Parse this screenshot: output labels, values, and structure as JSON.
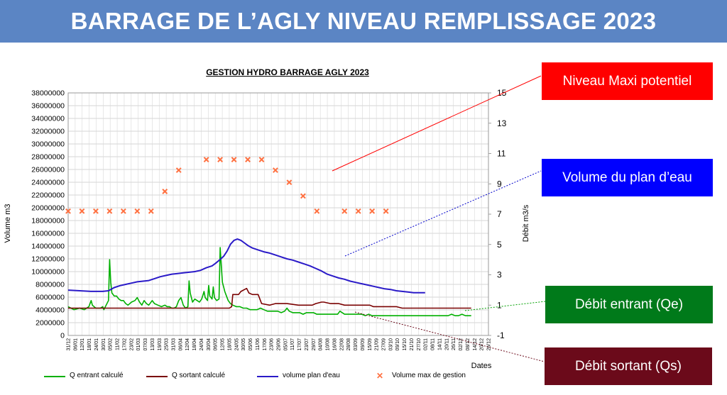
{
  "header": {
    "title": "BARRAGE DE L’AGLY NIVEAU REMPLISSAGE 2023"
  },
  "callouts": {
    "niveau_maxi": "Niveau Maxi potentiel",
    "volume": "Volume du plan d’eau",
    "debit_entrant": "Débit entrant (Qe)",
    "debit_sortant": "Débit sortant (Qs)"
  },
  "colors": {
    "banner": "#5b85c4",
    "qe": "#00b000",
    "qs": "#7a0000",
    "volume": "#2a1ac8",
    "max": "#ff7040",
    "callout_maxi": "#ff0000",
    "callout_volume": "#0000ff",
    "callout_qe": "#007a1a",
    "callout_qs": "#6b0a1a"
  },
  "chart_data": {
    "type": "line",
    "title": "GESTION HYDRO BARRAGE AGLY 2023",
    "ylabel": "Volume m3",
    "y2label": "Débit m3/s",
    "xlabel": "Dates",
    "ylim": [
      0,
      38000000
    ],
    "y2lim": [
      -1,
      15
    ],
    "yticks": [
      0,
      2000000,
      4000000,
      6000000,
      8000000,
      10000000,
      12000000,
      14000000,
      16000000,
      18000000,
      20000000,
      22000000,
      24000000,
      26000000,
      28000000,
      30000000,
      32000000,
      34000000,
      36000000,
      38000000
    ],
    "y2ticks": [
      -1,
      1,
      3,
      5,
      7,
      9,
      11,
      13,
      15
    ],
    "xticks": [
      "31/12",
      "06/01",
      "12/01",
      "18/01",
      "24/01",
      "30/01",
      "05/02",
      "11/02",
      "17/02",
      "23/02",
      "01/03",
      "07/03",
      "13/03",
      "19/03",
      "25/03",
      "31/03",
      "06/04",
      "12/04",
      "18/04",
      "24/04",
      "30/04",
      "06/05",
      "12/05",
      "18/05",
      "24/05",
      "30/05",
      "05/06",
      "11/06",
      "17/06",
      "23/06",
      "29/06",
      "05/07",
      "11/07",
      "17/07",
      "23/07",
      "29/07",
      "04/08",
      "10/08",
      "16/08",
      "22/08",
      "28/08",
      "03/09",
      "09/09",
      "15/09",
      "21/09",
      "27/09",
      "03/10",
      "09/10",
      "15/10",
      "21/10",
      "27/10",
      "02/11",
      "08/11",
      "14/11",
      "20/11",
      "26/11",
      "02/12",
      "08/12",
      "14/12",
      "20/12",
      "26/12"
    ],
    "grid": true,
    "legend": "bottom",
    "series": [
      {
        "name": "Q entrant calculé",
        "axis": "y2",
        "points": [
          [
            0,
            0.9
          ],
          [
            5,
            0.7
          ],
          [
            10,
            0.8
          ],
          [
            14,
            0.7
          ],
          [
            18,
            0.9
          ],
          [
            20,
            1.3
          ],
          [
            21,
            1.0
          ],
          [
            24,
            0.8
          ],
          [
            28,
            0.8
          ],
          [
            30,
            0.9
          ],
          [
            31,
            0.7
          ],
          [
            33,
            1.0
          ],
          [
            35,
            1.3
          ],
          [
            36,
            4.0
          ],
          [
            37,
            2.5
          ],
          [
            38,
            1.8
          ],
          [
            40,
            1.6
          ],
          [
            42,
            1.6
          ],
          [
            44,
            1.4
          ],
          [
            46,
            1.3
          ],
          [
            48,
            1.3
          ],
          [
            50,
            1.1
          ],
          [
            52,
            1.0
          ],
          [
            55,
            1.2
          ],
          [
            58,
            1.3
          ],
          [
            60,
            1.5
          ],
          [
            62,
            1.2
          ],
          [
            64,
            1.0
          ],
          [
            66,
            1.3
          ],
          [
            68,
            1.1
          ],
          [
            70,
            1.0
          ],
          [
            73,
            1.3
          ],
          [
            75,
            1.1
          ],
          [
            78,
            1.0
          ],
          [
            81,
            0.9
          ],
          [
            84,
            1.0
          ],
          [
            86,
            0.9
          ],
          [
            88,
            0.9
          ],
          [
            90,
            0.8
          ],
          [
            92,
            0.8
          ],
          [
            94,
            0.9
          ],
          [
            96,
            1.3
          ],
          [
            98,
            1.5
          ],
          [
            100,
            1.0
          ],
          [
            102,
            0.8
          ],
          [
            104,
            0.9
          ],
          [
            105,
            2.6
          ],
          [
            106,
            1.8
          ],
          [
            108,
            1.2
          ],
          [
            110,
            1.4
          ],
          [
            112,
            1.3
          ],
          [
            114,
            1.2
          ],
          [
            116,
            1.4
          ],
          [
            118,
            1.9
          ],
          [
            119,
            1.5
          ],
          [
            121,
            1.3
          ],
          [
            122,
            2.3
          ],
          [
            123,
            1.6
          ],
          [
            125,
            1.4
          ],
          [
            126,
            2.2
          ],
          [
            127,
            1.5
          ],
          [
            129,
            1.3
          ],
          [
            131,
            1.4
          ],
          [
            132,
            4.8
          ],
          [
            133,
            3.6
          ],
          [
            134,
            2.5
          ],
          [
            135,
            2.2
          ],
          [
            136,
            1.9
          ],
          [
            137,
            1.7
          ],
          [
            139,
            1.3
          ],
          [
            141,
            1.1
          ],
          [
            143,
            1.0
          ],
          [
            146,
            0.9
          ],
          [
            149,
            0.9
          ],
          [
            152,
            0.8
          ],
          [
            155,
            0.8
          ],
          [
            158,
            0.7
          ],
          [
            161,
            0.7
          ],
          [
            164,
            0.7
          ],
          [
            167,
            0.8
          ],
          [
            170,
            0.7
          ],
          [
            173,
            0.6
          ],
          [
            176,
            0.6
          ],
          [
            179,
            0.6
          ],
          [
            182,
            0.6
          ],
          [
            185,
            0.5
          ],
          [
            188,
            0.6
          ],
          [
            190,
            0.8
          ],
          [
            192,
            0.6
          ],
          [
            195,
            0.5
          ],
          [
            198,
            0.5
          ],
          [
            201,
            0.5
          ],
          [
            204,
            0.4
          ],
          [
            207,
            0.5
          ],
          [
            210,
            0.5
          ],
          [
            213,
            0.5
          ],
          [
            216,
            0.4
          ],
          [
            219,
            0.4
          ],
          [
            222,
            0.4
          ],
          [
            225,
            0.4
          ],
          [
            228,
            0.4
          ],
          [
            231,
            0.4
          ],
          [
            234,
            0.4
          ],
          [
            236,
            0.6
          ],
          [
            238,
            0.5
          ],
          [
            240,
            0.4
          ],
          [
            243,
            0.4
          ],
          [
            246,
            0.4
          ],
          [
            249,
            0.4
          ],
          [
            252,
            0.4
          ],
          [
            255,
            0.4
          ],
          [
            258,
            0.3
          ],
          [
            261,
            0.4
          ],
          [
            264,
            0.3
          ],
          [
            267,
            0.3
          ],
          [
            270,
            0.3
          ],
          [
            273,
            0.3
          ],
          [
            276,
            0.3
          ],
          [
            279,
            0.3
          ],
          [
            282,
            0.3
          ],
          [
            285,
            0.3
          ],
          [
            288,
            0.3
          ],
          [
            291,
            0.3
          ],
          [
            294,
            0.3
          ],
          [
            297,
            0.3
          ],
          [
            300,
            0.3
          ],
          [
            303,
            0.3
          ],
          [
            306,
            0.3
          ],
          [
            309,
            0.3
          ],
          [
            312,
            0.3
          ],
          [
            315,
            0.3
          ],
          [
            318,
            0.3
          ],
          [
            321,
            0.3
          ],
          [
            324,
            0.3
          ],
          [
            327,
            0.3
          ],
          [
            330,
            0.3
          ],
          [
            333,
            0.4
          ],
          [
            336,
            0.3
          ],
          [
            339,
            0.3
          ],
          [
            342,
            0.4
          ],
          [
            345,
            0.3
          ],
          [
            348,
            0.3
          ],
          [
            350,
            0.3
          ]
        ]
      },
      {
        "name": "Q sortant calculé",
        "axis": "y2",
        "points": [
          [
            0,
            0.8
          ],
          [
            20,
            0.8
          ],
          [
            40,
            0.8
          ],
          [
            60,
            0.8
          ],
          [
            80,
            0.8
          ],
          [
            100,
            0.8
          ],
          [
            120,
            0.8
          ],
          [
            140,
            0.8
          ],
          [
            142,
            0.9
          ],
          [
            143,
            1.7
          ],
          [
            148,
            1.7
          ],
          [
            150,
            1.9
          ],
          [
            155,
            2.1
          ],
          [
            157,
            1.8
          ],
          [
            160,
            1.7
          ],
          [
            165,
            1.7
          ],
          [
            168,
            1.1
          ],
          [
            175,
            1.0
          ],
          [
            180,
            1.1
          ],
          [
            190,
            1.1
          ],
          [
            200,
            1.0
          ],
          [
            205,
            1.0
          ],
          [
            208,
            1.0
          ],
          [
            210,
            1.0
          ],
          [
            212,
            1.0
          ],
          [
            215,
            1.1
          ],
          [
            220,
            1.2
          ],
          [
            222,
            1.2
          ],
          [
            228,
            1.1
          ],
          [
            232,
            1.1
          ],
          [
            235,
            1.1
          ],
          [
            240,
            1.0
          ],
          [
            245,
            1.0
          ],
          [
            250,
            1.0
          ],
          [
            255,
            1.0
          ],
          [
            260,
            1.0
          ],
          [
            262,
            1.0
          ],
          [
            265,
            0.9
          ],
          [
            270,
            0.9
          ],
          [
            275,
            0.9
          ],
          [
            280,
            0.9
          ],
          [
            285,
            0.9
          ],
          [
            290,
            0.8
          ],
          [
            295,
            0.8
          ],
          [
            300,
            0.8
          ],
          [
            305,
            0.8
          ],
          [
            310,
            0.8
          ],
          [
            315,
            0.8
          ],
          [
            320,
            0.8
          ],
          [
            325,
            0.8
          ],
          [
            330,
            0.8
          ],
          [
            335,
            0.8
          ],
          [
            340,
            0.8
          ],
          [
            345,
            0.8
          ],
          [
            350,
            0.8
          ]
        ]
      },
      {
        "name": "volume plan d'eau",
        "axis": "y",
        "points": [
          [
            0,
            7100000
          ],
          [
            10,
            7000000
          ],
          [
            20,
            6900000
          ],
          [
            30,
            6900000
          ],
          [
            35,
            7000000
          ],
          [
            40,
            7500000
          ],
          [
            45,
            7800000
          ],
          [
            50,
            8000000
          ],
          [
            55,
            8200000
          ],
          [
            60,
            8400000
          ],
          [
            65,
            8500000
          ],
          [
            70,
            8600000
          ],
          [
            75,
            8900000
          ],
          [
            80,
            9200000
          ],
          [
            85,
            9400000
          ],
          [
            90,
            9600000
          ],
          [
            95,
            9700000
          ],
          [
            100,
            9800000
          ],
          [
            105,
            9900000
          ],
          [
            110,
            10000000
          ],
          [
            115,
            10200000
          ],
          [
            120,
            10600000
          ],
          [
            125,
            10900000
          ],
          [
            128,
            11300000
          ],
          [
            132,
            11900000
          ],
          [
            135,
            12400000
          ],
          [
            138,
            13200000
          ],
          [
            141,
            14300000
          ],
          [
            144,
            14900000
          ],
          [
            147,
            15100000
          ],
          [
            150,
            14900000
          ],
          [
            153,
            14500000
          ],
          [
            156,
            14100000
          ],
          [
            160,
            13700000
          ],
          [
            165,
            13400000
          ],
          [
            170,
            13100000
          ],
          [
            175,
            12900000
          ],
          [
            180,
            12600000
          ],
          [
            185,
            12300000
          ],
          [
            190,
            12000000
          ],
          [
            195,
            11800000
          ],
          [
            200,
            11500000
          ],
          [
            205,
            11200000
          ],
          [
            210,
            10900000
          ],
          [
            215,
            10500000
          ],
          [
            220,
            10100000
          ],
          [
            225,
            9600000
          ],
          [
            230,
            9300000
          ],
          [
            235,
            9000000
          ],
          [
            240,
            8800000
          ],
          [
            245,
            8500000
          ],
          [
            250,
            8300000
          ],
          [
            255,
            8100000
          ],
          [
            260,
            7900000
          ],
          [
            265,
            7700000
          ],
          [
            270,
            7500000
          ],
          [
            275,
            7300000
          ],
          [
            280,
            7200000
          ],
          [
            285,
            7000000
          ],
          [
            290,
            6900000
          ],
          [
            295,
            6800000
          ],
          [
            300,
            6700000
          ],
          [
            305,
            6700000
          ],
          [
            310,
            6700000
          ]
        ]
      },
      {
        "name": "Volume  max de gestion",
        "axis": "y2",
        "points": [
          [
            0,
            7.2
          ],
          [
            12,
            7.2
          ],
          [
            24,
            7.2
          ],
          [
            36,
            7.2
          ],
          [
            48,
            7.2
          ],
          [
            60,
            7.2
          ],
          [
            72,
            7.2
          ],
          [
            84,
            8.5
          ],
          [
            96,
            9.9
          ],
          [
            120,
            10.6
          ],
          [
            132,
            10.6
          ],
          [
            144,
            10.6
          ],
          [
            156,
            10.6
          ],
          [
            168,
            10.6
          ],
          [
            180,
            9.9
          ],
          [
            192,
            9.1
          ],
          [
            204,
            8.2
          ],
          [
            216,
            7.2
          ],
          [
            240,
            7.2
          ],
          [
            252,
            7.2
          ],
          [
            264,
            7.2
          ],
          [
            276,
            7.2
          ]
        ]
      }
    ]
  }
}
